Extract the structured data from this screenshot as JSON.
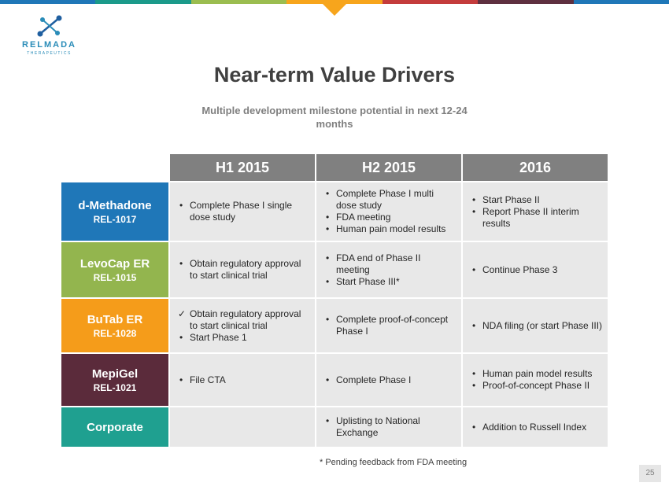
{
  "colors": {
    "top_bar": [
      "#1f77b8",
      "#1b9a8a",
      "#9bbd50",
      "#f7a51c",
      "#c43c3c",
      "#5e3040",
      "#1f77b8"
    ],
    "methadone": "#1f77b8",
    "levocap": "#93b54e",
    "butab": "#f59c1a",
    "mepigel": "#5b2b3b",
    "corporate": "#1fa090",
    "header": "#808080"
  },
  "logo": {
    "name": "RELMADA",
    "sub": "THERAPEUTICS"
  },
  "title": "Near-term Value Drivers",
  "subtitle": "Multiple development milestone potential in next 12-24 months",
  "table": {
    "headers": [
      "H1 2015",
      "H2 2015",
      "2016"
    ],
    "rows": [
      {
        "name": "d-Methadone",
        "code": "REL-1017",
        "h1": [
          "Complete Phase I single dose study"
        ],
        "h2": [
          "Complete Phase I multi dose study",
          "FDA meeting",
          "Human pain model results"
        ],
        "y2016": [
          "Start Phase II",
          "Report Phase II interim results"
        ]
      },
      {
        "name": "LevoCap ER",
        "code": "REL-1015",
        "h1": [
          "Obtain regulatory approval to start clinical trial"
        ],
        "h2": [
          "FDA end of Phase II meeting",
          "Start Phase III*"
        ],
        "y2016": [
          "Continue Phase 3"
        ]
      },
      {
        "name": "BuTab ER",
        "code": "REL-1028",
        "h1": [
          "Obtain regulatory approval to start clinical trial",
          "Start Phase 1"
        ],
        "h2": [
          "Complete proof-of-concept Phase I"
        ],
        "y2016": [
          "NDA filing (or start Phase III)"
        ]
      },
      {
        "name": "MepiGel",
        "code": "REL-1021",
        "h1": [
          "File CTA"
        ],
        "h2": [
          "Complete Phase I"
        ],
        "y2016": [
          "Human pain model results",
          "Proof-of-concept Phase II"
        ]
      },
      {
        "name": "Corporate",
        "h2": [
          "Uplisting to National Exchange"
        ],
        "y2016": [
          "Addition to Russell Index"
        ]
      }
    ]
  },
  "footnote": "* Pending feedback from FDA meeting",
  "page_number": "25"
}
